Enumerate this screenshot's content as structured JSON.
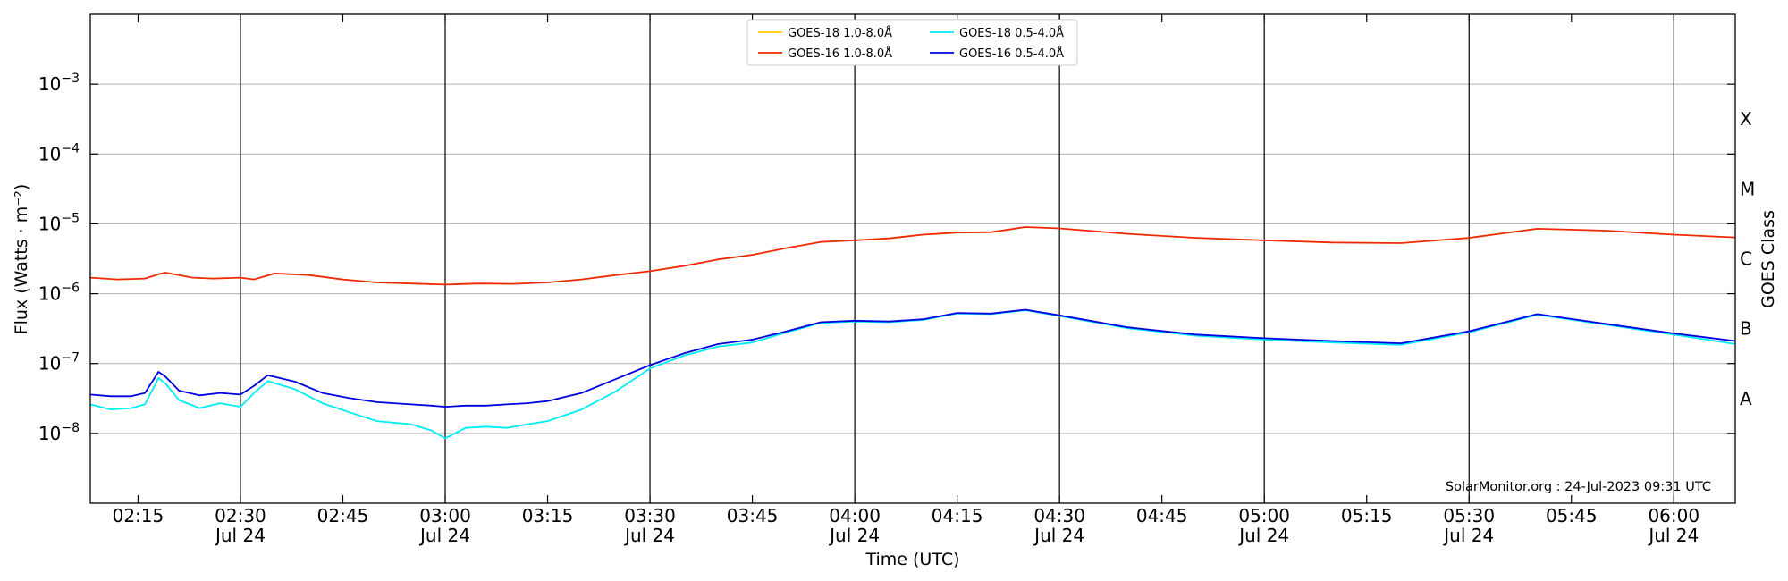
{
  "chart_data": {
    "type": "line",
    "title": "",
    "xlabel": "Time (UTC)",
    "ylabel": "Flux (Watts · m⁻²)",
    "ylabel_right": "GOES Class",
    "y_scale": "log",
    "ylim": [
      1e-09,
      0.01
    ],
    "xlim": [
      "2023-07-24 02:08",
      "2023-07-24 06:09"
    ],
    "grid": "horizontal",
    "legend_position": "top-center",
    "y_tick_labels": [
      {
        "value": 1e-08,
        "base": "10",
        "exp": "−8"
      },
      {
        "value": 1e-07,
        "base": "10",
        "exp": "−7"
      },
      {
        "value": 1e-06,
        "base": "10",
        "exp": "−6"
      },
      {
        "value": 1e-05,
        "base": "10",
        "exp": "−5"
      },
      {
        "value": 0.0001,
        "base": "10",
        "exp": "−4"
      },
      {
        "value": 0.001,
        "base": "10",
        "exp": "−3"
      }
    ],
    "class_labels": [
      {
        "label": "A",
        "value": 3.16e-08
      },
      {
        "label": "B",
        "value": 3.16e-07
      },
      {
        "label": "C",
        "value": 3.16e-06
      },
      {
        "label": "M",
        "value": 3.16e-05
      },
      {
        "label": "X",
        "value": 0.000316
      }
    ],
    "x_ticks": [
      {
        "time": "2023-07-24 02:15",
        "label": "02:15",
        "date": ""
      },
      {
        "time": "2023-07-24 02:30",
        "label": "02:30",
        "date": "Jul 24"
      },
      {
        "time": "2023-07-24 02:45",
        "label": "02:45",
        "date": ""
      },
      {
        "time": "2023-07-24 03:00",
        "label": "03:00",
        "date": "Jul 24"
      },
      {
        "time": "2023-07-24 03:15",
        "label": "03:15",
        "date": ""
      },
      {
        "time": "2023-07-24 03:30",
        "label": "03:30",
        "date": "Jul 24"
      },
      {
        "time": "2023-07-24 03:45",
        "label": "03:45",
        "date": ""
      },
      {
        "time": "2023-07-24 04:00",
        "label": "04:00",
        "date": "Jul 24"
      },
      {
        "time": "2023-07-24 04:15",
        "label": "04:15",
        "date": ""
      },
      {
        "time": "2023-07-24 04:30",
        "label": "04:30",
        "date": "Jul 24"
      },
      {
        "time": "2023-07-24 04:45",
        "label": "04:45",
        "date": ""
      },
      {
        "time": "2023-07-24 05:00",
        "label": "05:00",
        "date": "Jul 24"
      },
      {
        "time": "2023-07-24 05:15",
        "label": "05:15",
        "date": ""
      },
      {
        "time": "2023-07-24 05:30",
        "label": "05:30",
        "date": "Jul 24"
      },
      {
        "time": "2023-07-24 05:45",
        "label": "05:45",
        "date": ""
      },
      {
        "time": "2023-07-24 06:00",
        "label": "06:00",
        "date": "Jul 24"
      }
    ],
    "vertical_lines": [
      "2023-07-24 02:30",
      "2023-07-24 03:00",
      "2023-07-24 03:30",
      "2023-07-24 04:00",
      "2023-07-24 04:30",
      "2023-07-24 05:00",
      "2023-07-24 05:30",
      "2023-07-24 06:00"
    ],
    "annotation": "SolarMonitor.org : 24-Jul-2023 09:31 UTC",
    "series": [
      {
        "name": "GOES-18 1.0-8.0Å",
        "color": "#ffcc00",
        "x": [],
        "y": []
      },
      {
        "name": "GOES-16 1.0-8.0Å",
        "color": "#ee2a00",
        "x": [
          "2023-07-24 02:08",
          "2023-07-24 02:12",
          "2023-07-24 02:16",
          "2023-07-24 02:18",
          "2023-07-24 02:19",
          "2023-07-24 02:21",
          "2023-07-24 02:23",
          "2023-07-24 02:26",
          "2023-07-24 02:30",
          "2023-07-24 02:32",
          "2023-07-24 02:35",
          "2023-07-24 02:40",
          "2023-07-24 02:45",
          "2023-07-24 02:50",
          "2023-07-24 02:55",
          "2023-07-24 03:00",
          "2023-07-24 03:05",
          "2023-07-24 03:10",
          "2023-07-24 03:15",
          "2023-07-24 03:20",
          "2023-07-24 03:25",
          "2023-07-24 03:30",
          "2023-07-24 03:35",
          "2023-07-24 03:40",
          "2023-07-24 03:45",
          "2023-07-24 03:50",
          "2023-07-24 03:55",
          "2023-07-24 04:00",
          "2023-07-24 04:05",
          "2023-07-24 04:10",
          "2023-07-24 04:15",
          "2023-07-24 04:20",
          "2023-07-24 04:25",
          "2023-07-24 04:30",
          "2023-07-24 04:40",
          "2023-07-24 04:50",
          "2023-07-24 05:00",
          "2023-07-24 05:10",
          "2023-07-24 05:20",
          "2023-07-24 05:30",
          "2023-07-24 05:40",
          "2023-07-24 05:50",
          "2023-07-24 06:00",
          "2023-07-24 06:09"
        ],
        "y": [
          1.7e-06,
          1.6e-06,
          1.65e-06,
          1.9e-06,
          2e-06,
          1.85e-06,
          1.7e-06,
          1.65e-06,
          1.7e-06,
          1.6e-06,
          1.95e-06,
          1.85e-06,
          1.6e-06,
          1.45e-06,
          1.4e-06,
          1.35e-06,
          1.4e-06,
          1.38e-06,
          1.45e-06,
          1.6e-06,
          1.85e-06,
          2.1e-06,
          2.5e-06,
          3.1e-06,
          3.6e-06,
          4.5e-06,
          5.5e-06,
          5.8e-06,
          6.2e-06,
          7e-06,
          7.5e-06,
          7.6e-06,
          9e-06,
          8.6e-06,
          7.2e-06,
          6.3e-06,
          5.8e-06,
          5.4e-06,
          5.3e-06,
          6.3e-06,
          8.5e-06,
          8e-06,
          7e-06,
          6.4e-06
        ]
      },
      {
        "name": "GOES-18 0.5-4.0Å",
        "color": "#00ecf2",
        "x": [
          "2023-07-24 02:08",
          "2023-07-24 02:11",
          "2023-07-24 02:14",
          "2023-07-24 02:16",
          "2023-07-24 02:18",
          "2023-07-24 02:19",
          "2023-07-24 02:21",
          "2023-07-24 02:24",
          "2023-07-24 02:27",
          "2023-07-24 02:30",
          "2023-07-24 02:32",
          "2023-07-24 02:34",
          "2023-07-24 02:38",
          "2023-07-24 02:42",
          "2023-07-24 02:46",
          "2023-07-24 02:50",
          "2023-07-24 02:55",
          "2023-07-24 02:58",
          "2023-07-24 03:00",
          "2023-07-24 03:03",
          "2023-07-24 03:06",
          "2023-07-24 03:09",
          "2023-07-24 03:12",
          "2023-07-24 03:15",
          "2023-07-24 03:20",
          "2023-07-24 03:25",
          "2023-07-24 03:30",
          "2023-07-24 03:35",
          "2023-07-24 03:40",
          "2023-07-24 03:45",
          "2023-07-24 03:50",
          "2023-07-24 03:55",
          "2023-07-24 04:00",
          "2023-07-24 04:05",
          "2023-07-24 04:10",
          "2023-07-24 04:15",
          "2023-07-24 04:20",
          "2023-07-24 04:25",
          "2023-07-24 04:30",
          "2023-07-24 04:40",
          "2023-07-24 04:50",
          "2023-07-24 05:00",
          "2023-07-24 05:10",
          "2023-07-24 05:20",
          "2023-07-24 05:30",
          "2023-07-24 05:40",
          "2023-07-24 05:50",
          "2023-07-24 06:00",
          "2023-07-24 06:09"
        ],
        "y": [
          2.6e-08,
          2.2e-08,
          2.3e-08,
          2.6e-08,
          6.2e-08,
          5.2e-08,
          3e-08,
          2.3e-08,
          2.7e-08,
          2.4e-08,
          3.8e-08,
          5.6e-08,
          4.3e-08,
          2.7e-08,
          2e-08,
          1.5e-08,
          1.35e-08,
          1.1e-08,
          8.5e-09,
          1.2e-08,
          1.25e-08,
          1.2e-08,
          1.35e-08,
          1.5e-08,
          2.2e-08,
          4e-08,
          8.5e-08,
          1.3e-07,
          1.75e-07,
          2e-07,
          2.8e-07,
          3.8e-07,
          4e-07,
          3.9e-07,
          4.2e-07,
          5.2e-07,
          5.1e-07,
          5.8e-07,
          4.8e-07,
          3.2e-07,
          2.5e-07,
          2.2e-07,
          2e-07,
          1.85e-07,
          2.8e-07,
          5e-07,
          3.6e-07,
          2.6e-07,
          1.9e-07
        ]
      },
      {
        "name": "GOES-16 0.5-4.0Å",
        "color": "#0000e0",
        "x": [
          "2023-07-24 02:08",
          "2023-07-24 02:11",
          "2023-07-24 02:14",
          "2023-07-24 02:16",
          "2023-07-24 02:18",
          "2023-07-24 02:19",
          "2023-07-24 02:21",
          "2023-07-24 02:24",
          "2023-07-24 02:27",
          "2023-07-24 02:30",
          "2023-07-24 02:32",
          "2023-07-24 02:34",
          "2023-07-24 02:38",
          "2023-07-24 02:42",
          "2023-07-24 02:46",
          "2023-07-24 02:50",
          "2023-07-24 02:55",
          "2023-07-24 02:58",
          "2023-07-24 03:00",
          "2023-07-24 03:03",
          "2023-07-24 03:06",
          "2023-07-24 03:09",
          "2023-07-24 03:12",
          "2023-07-24 03:15",
          "2023-07-24 03:20",
          "2023-07-24 03:25",
          "2023-07-24 03:30",
          "2023-07-24 03:35",
          "2023-07-24 03:40",
          "2023-07-24 03:45",
          "2023-07-24 03:50",
          "2023-07-24 03:55",
          "2023-07-24 04:00",
          "2023-07-24 04:05",
          "2023-07-24 04:10",
          "2023-07-24 04:15",
          "2023-07-24 04:20",
          "2023-07-24 04:25",
          "2023-07-24 04:30",
          "2023-07-24 04:40",
          "2023-07-24 04:50",
          "2023-07-24 05:00",
          "2023-07-24 05:10",
          "2023-07-24 05:20",
          "2023-07-24 05:30",
          "2023-07-24 05:40",
          "2023-07-24 05:50",
          "2023-07-24 06:00",
          "2023-07-24 06:09"
        ],
        "y": [
          3.6e-08,
          3.4e-08,
          3.4e-08,
          3.8e-08,
          7.6e-08,
          6.5e-08,
          4.1e-08,
          3.5e-08,
          3.8e-08,
          3.6e-08,
          4.8e-08,
          6.8e-08,
          5.5e-08,
          3.8e-08,
          3.2e-08,
          2.8e-08,
          2.6e-08,
          2.5e-08,
          2.4e-08,
          2.5e-08,
          2.5e-08,
          2.6e-08,
          2.7e-08,
          2.9e-08,
          3.8e-08,
          6e-08,
          9.5e-08,
          1.4e-07,
          1.9e-07,
          2.2e-07,
          2.9e-07,
          3.9e-07,
          4.1e-07,
          4e-07,
          4.3e-07,
          5.3e-07,
          5.2e-07,
          5.9e-07,
          4.9e-07,
          3.3e-07,
          2.6e-07,
          2.3e-07,
          2.1e-07,
          1.95e-07,
          2.9e-07,
          5.1e-07,
          3.7e-07,
          2.7e-07,
          2.1e-07
        ]
      }
    ]
  }
}
